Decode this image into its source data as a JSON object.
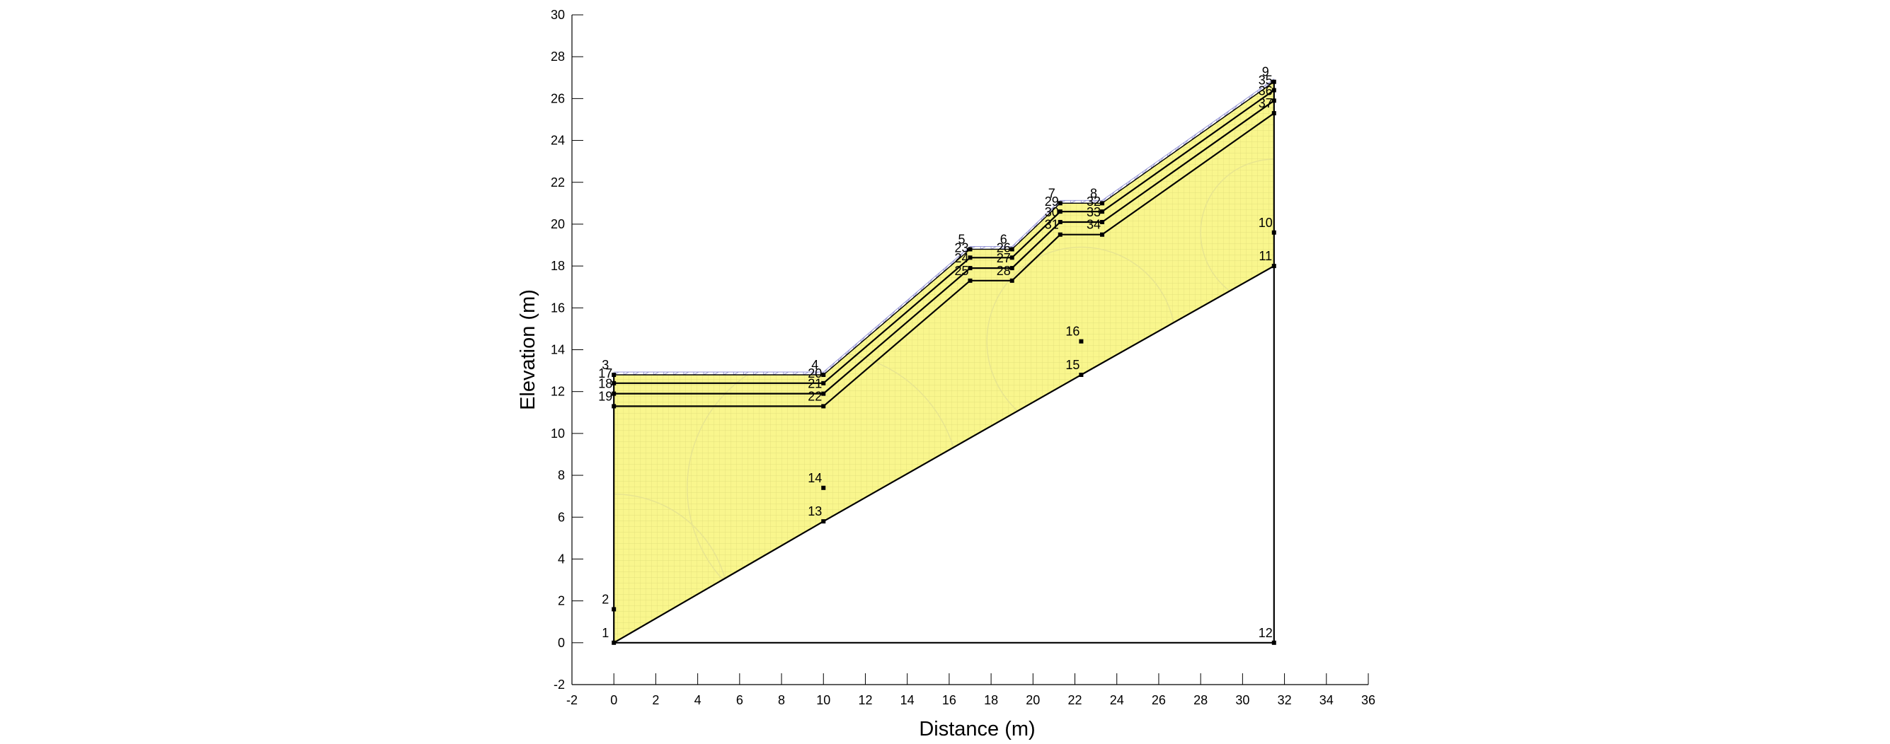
{
  "chart_data": {
    "type": "slope-geometry",
    "xlabel": "Distance (m)",
    "ylabel": "Elevation (m)",
    "xlim": [
      -2,
      36
    ],
    "ylim": [
      -2,
      30
    ],
    "x_ticks": [
      -2,
      0,
      2,
      4,
      6,
      8,
      10,
      12,
      14,
      16,
      18,
      20,
      22,
      24,
      26,
      28,
      30,
      32,
      34,
      36
    ],
    "y_ticks": [
      -2,
      0,
      2,
      4,
      6,
      8,
      10,
      12,
      14,
      16,
      18,
      20,
      22,
      24,
      26,
      28,
      30
    ],
    "colors": {
      "soil_fill": "#f9f68d",
      "mesh_line": "#d6d36a",
      "boundary": "#000000",
      "surface_mesh": "#9a9ad8"
    },
    "points": [
      {
        "id": "1",
        "x": 0.0,
        "y": 0.0
      },
      {
        "id": "2",
        "x": 0.0,
        "y": 1.6
      },
      {
        "id": "3",
        "x": 0.0,
        "y": 12.8
      },
      {
        "id": "4",
        "x": 10.0,
        "y": 12.8
      },
      {
        "id": "5",
        "x": 17.0,
        "y": 18.8
      },
      {
        "id": "6",
        "x": 19.0,
        "y": 18.8
      },
      {
        "id": "7",
        "x": 21.3,
        "y": 21.0
      },
      {
        "id": "8",
        "x": 23.3,
        "y": 21.0
      },
      {
        "id": "9",
        "x": 31.5,
        "y": 26.8
      },
      {
        "id": "10",
        "x": 31.5,
        "y": 19.6
      },
      {
        "id": "11",
        "x": 31.5,
        "y": 18.0
      },
      {
        "id": "12",
        "x": 31.5,
        "y": 0.0
      },
      {
        "id": "13",
        "x": 10.0,
        "y": 5.8
      },
      {
        "id": "14",
        "x": 10.0,
        "y": 7.4
      },
      {
        "id": "15",
        "x": 22.3,
        "y": 12.8
      },
      {
        "id": "16",
        "x": 22.3,
        "y": 14.4
      },
      {
        "id": "17",
        "x": 0.0,
        "y": 12.4
      },
      {
        "id": "18",
        "x": 0.0,
        "y": 11.9
      },
      {
        "id": "19",
        "x": 0.0,
        "y": 11.3
      },
      {
        "id": "20",
        "x": 10.0,
        "y": 12.4
      },
      {
        "id": "21",
        "x": 10.0,
        "y": 11.9
      },
      {
        "id": "22",
        "x": 10.0,
        "y": 11.3
      },
      {
        "id": "23",
        "x": 17.0,
        "y": 18.4
      },
      {
        "id": "24",
        "x": 17.0,
        "y": 17.9
      },
      {
        "id": "25",
        "x": 17.0,
        "y": 17.3
      },
      {
        "id": "26",
        "x": 19.0,
        "y": 18.4
      },
      {
        "id": "27",
        "x": 19.0,
        "y": 17.9
      },
      {
        "id": "28",
        "x": 19.0,
        "y": 17.3
      },
      {
        "id": "29",
        "x": 21.3,
        "y": 20.6
      },
      {
        "id": "30",
        "x": 21.3,
        "y": 20.1
      },
      {
        "id": "31",
        "x": 21.3,
        "y": 19.5
      },
      {
        "id": "32",
        "x": 23.3,
        "y": 20.6
      },
      {
        "id": "33",
        "x": 23.3,
        "y": 20.1
      },
      {
        "id": "34",
        "x": 23.3,
        "y": 19.5
      },
      {
        "id": "35",
        "x": 31.5,
        "y": 26.4
      },
      {
        "id": "36",
        "x": 31.5,
        "y": 25.9
      },
      {
        "id": "37",
        "x": 31.5,
        "y": 25.3
      }
    ],
    "soil_region": [
      "1",
      "3",
      "4",
      "5",
      "6",
      "7",
      "8",
      "9",
      "11",
      "15",
      "13"
    ],
    "layer_lines": [
      [
        "3",
        "4",
        "5",
        "6",
        "7",
        "8",
        "9"
      ],
      [
        "17",
        "20",
        "23",
        "26",
        "29",
        "32",
        "35"
      ],
      [
        "18",
        "21",
        "24",
        "27",
        "30",
        "33",
        "36"
      ],
      [
        "19",
        "22",
        "25",
        "28",
        "31",
        "34",
        "37"
      ]
    ],
    "boundary_lines": [
      [
        "1",
        "12"
      ],
      [
        "12",
        "9"
      ],
      [
        "1",
        "3"
      ],
      [
        "1",
        "13",
        "15",
        "11"
      ]
    ]
  }
}
